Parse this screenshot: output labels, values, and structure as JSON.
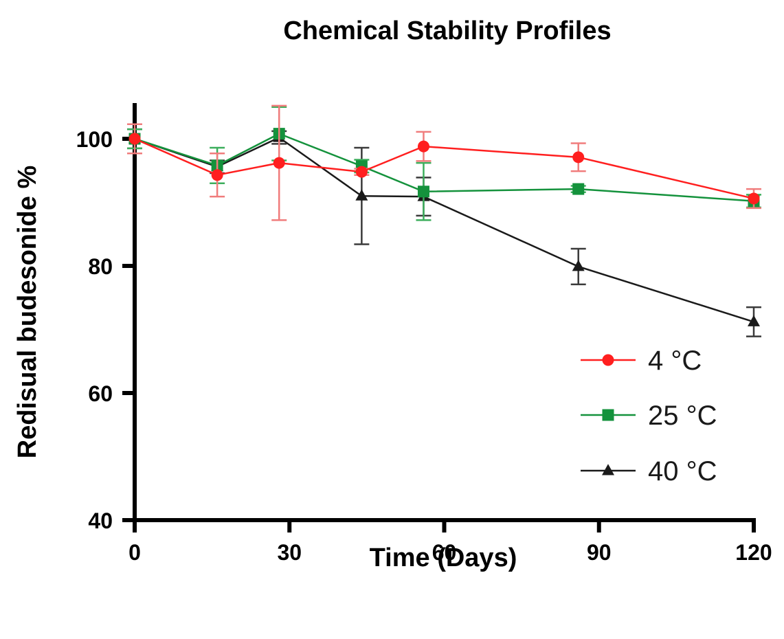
{
  "chart_data": {
    "type": "line",
    "title": "Chemical Stability Profiles",
    "xlabel": "Time (Days)",
    "ylabel": "Redisual budesonide %",
    "xlim": [
      0,
      120
    ],
    "ylim": [
      40,
      105
    ],
    "x_ticks": [
      0,
      30,
      60,
      90,
      120
    ],
    "y_ticks": [
      40,
      60,
      80,
      100
    ],
    "x_tick_labels": [
      "0",
      "30",
      "60",
      "90",
      "120"
    ],
    "y_tick_labels": [
      "40",
      "60",
      "80",
      "100"
    ],
    "grid": false,
    "legend_position": "lower-right",
    "series": [
      {
        "name": "4 °C",
        "color": "#ff1f1f",
        "errorbar_color": "#f07c7c",
        "marker": "circle",
        "x": [
          0,
          16,
          28,
          44,
          56,
          86,
          120
        ],
        "y": [
          100.0,
          94.3,
          96.2,
          94.8,
          98.8,
          97.1,
          90.6
        ],
        "err": [
          2.3,
          3.4,
          9.0,
          0.5,
          2.3,
          2.2,
          1.5
        ]
      },
      {
        "name": "25 °C",
        "color": "#14923c",
        "errorbar_color": "#3cae5c",
        "marker": "square",
        "x": [
          0,
          16,
          28,
          44,
          56,
          86,
          120
        ],
        "y": [
          100.0,
          95.8,
          100.8,
          95.7,
          91.7,
          92.1,
          90.2
        ],
        "err": [
          1.5,
          2.8,
          4.2,
          1.0,
          4.5,
          0.5,
          1.0
        ]
      },
      {
        "name": "40 °C",
        "color": "#1a1a1a",
        "errorbar_color": "#3a3a3a",
        "marker": "triangle",
        "x": [
          0,
          16,
          28,
          44,
          56,
          86,
          120
        ],
        "y": [
          100.0,
          95.6,
          100.2,
          91.0,
          90.9,
          79.9,
          71.2
        ],
        "err": [
          1.5,
          1.0,
          1.0,
          7.6,
          3.0,
          2.8,
          2.3
        ]
      }
    ]
  }
}
